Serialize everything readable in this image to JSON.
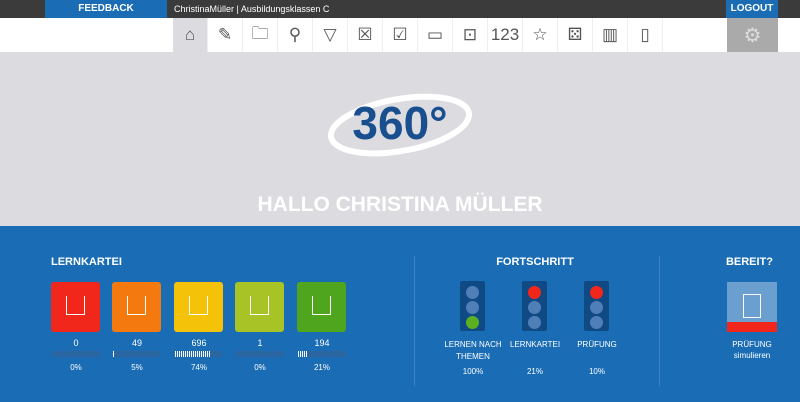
{
  "topbar": {
    "feedback": "FEEDBACK",
    "user": "ChristinaMüller | Ausbildungsklassen C",
    "logout": "LOGOUT"
  },
  "toolbar": [
    "home-icon",
    "edit-card-icon",
    "folder-icon",
    "search-icon",
    "filter-icon",
    "wrong-card-icon",
    "correct-card-icon",
    "image-icon",
    "video-icon",
    "123",
    "star-icon",
    "dice-icon",
    "stats-icon",
    "certificate-icon"
  ],
  "toolbar_glyphs": [
    "⌂",
    "✎",
    "🗀",
    "⚲",
    "▽",
    "☒",
    "☑",
    "▭",
    "⊡",
    "123",
    "☆",
    "⚄",
    "▥",
    "▯"
  ],
  "logo": "360°",
  "greeting": "HALLO CHRISTINA MÜLLER",
  "lernkartei": {
    "title": "LERNKARTEI",
    "boxes": [
      {
        "count": "0",
        "pct": "0%",
        "value": 0,
        "color": "#f2271c"
      },
      {
        "count": "49",
        "pct": "5%",
        "value": 5,
        "color": "#f47a10"
      },
      {
        "count": "696",
        "pct": "74%",
        "value": 74,
        "color": "#f5c20a"
      },
      {
        "count": "1",
        "pct": "0%",
        "value": 0,
        "color": "#a7c325"
      },
      {
        "count": "194",
        "pct": "21%",
        "value": 21,
        "color": "#4fa51d"
      }
    ]
  },
  "fortschritt": {
    "title": "FORTSCHRITT",
    "lights": [
      {
        "label": "LERNEN NACH THEMEN",
        "pct": "100%",
        "active": "green"
      },
      {
        "label": "LERNKARTEI",
        "pct": "21%",
        "active": "red"
      },
      {
        "label": "PRÜFUNG",
        "pct": "10%",
        "active": "red"
      }
    ]
  },
  "bereit": {
    "title": "BEREIT?",
    "label1": "PRÜFUNG",
    "label2": "simulieren"
  }
}
